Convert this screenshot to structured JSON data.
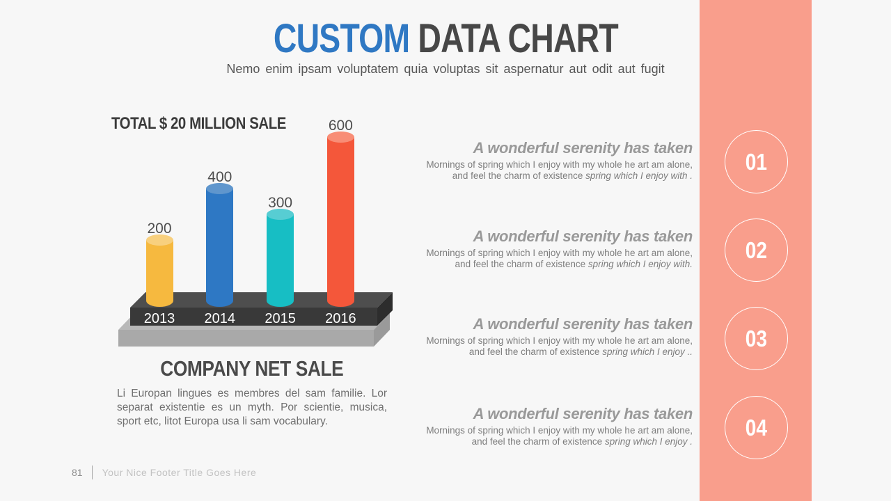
{
  "page": {
    "background_color": "#f7f7f7",
    "accent_band_color": "#f99e8c"
  },
  "header": {
    "title_primary": "CUSTOM ",
    "title_secondary": "DATA CHART",
    "title_primary_color": "#2f78c3",
    "title_secondary_color": "#474747",
    "subtitle": "Nemo enim ipsam voluptatem quia voluptas sit aspernatur aut odit aut fugit"
  },
  "chart_data": {
    "type": "bar",
    "title": "TOTAL $ 20 MILLION SALE",
    "categories": [
      "2013",
      "2014",
      "2015",
      "2016"
    ],
    "values": [
      200,
      400,
      300,
      600
    ],
    "bar_colors": [
      "#f6b93f",
      "#2e78c4",
      "#17bec4",
      "#f4573a"
    ],
    "bar_cap_colors": [
      "#f8d07e",
      "#5f96cd",
      "#57cdd3",
      "#f88d76"
    ],
    "xlabel": "",
    "ylabel": "",
    "ylim": [
      0,
      600
    ],
    "grid": false,
    "legend": false,
    "style": "3d-cylinder-bars-on-platform"
  },
  "caption": {
    "title": "COMPANY NET SALE",
    "body": "Li Europan lingues es membres del sam familie. Lor separat existentie es un myth. Por scientie, musica, sport etc, litot Europa usa li sam vocabulary."
  },
  "features": [
    {
      "number": "01",
      "heading": "A wonderful serenity has taken",
      "body_line1": "Mornings of spring which I enjoy with my whole he art am alone,",
      "body_line2_regular": "and feel the charm of existence ",
      "body_line2_italic": "spring which I enjoy with ."
    },
    {
      "number": "02",
      "heading": "A wonderful serenity has taken",
      "body_line1": "Mornings of spring which I enjoy with my whole he art am alone,",
      "body_line2_regular": "and feel the charm of existence ",
      "body_line2_italic": "spring which I enjoy with."
    },
    {
      "number": "03",
      "heading": "A wonderful serenity has taken",
      "body_line1": "Mornings of spring which I enjoy with my whole he art am alone,",
      "body_line2_regular": "and feel the charm of existence ",
      "body_line2_italic": "spring which I enjoy .."
    },
    {
      "number": "04",
      "heading": "A wonderful serenity has taken",
      "body_line1": "Mornings of spring which I enjoy with my whole he art am alone,",
      "body_line2_regular": "and feel the charm of existence ",
      "body_line2_italic": "spring which I enjoy ."
    }
  ],
  "footer": {
    "page_number": "81",
    "title": "Your Nice Footer Title Goes Here"
  },
  "layout_tops": {
    "features": [
      200,
      327,
      453,
      582
    ],
    "circles": [
      187,
      314,
      441,
      569
    ]
  }
}
